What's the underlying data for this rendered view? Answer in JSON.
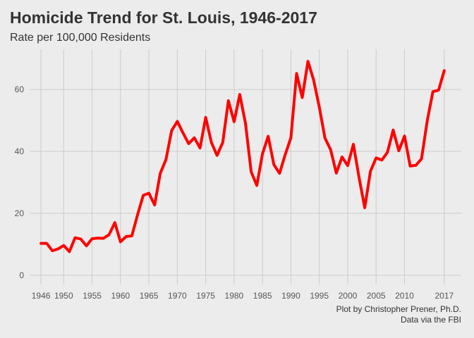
{
  "chart_data": {
    "type": "line",
    "title": "Homicide Trend for St. Louis, 1946-2017",
    "subtitle": "Rate per 100,000 Residents",
    "xlabel": "",
    "ylabel": "",
    "xlim": [
      1944,
      2020
    ],
    "ylim": [
      -3,
      73
    ],
    "x_ticks": [
      1946,
      1950,
      1955,
      1960,
      1965,
      1970,
      1975,
      1980,
      1985,
      1990,
      1995,
      2000,
      2005,
      2010,
      2017
    ],
    "y_ticks": [
      0,
      20,
      40,
      60
    ],
    "grid": true,
    "line_color": "#ff0000",
    "series": [
      {
        "x": [
          1946,
          1947,
          1948,
          1949,
          1950,
          1951,
          1952,
          1953,
          1954,
          1955,
          1956,
          1957,
          1958,
          1959,
          1960,
          1961,
          1962,
          1963,
          1964,
          1965,
          1966,
          1967,
          1968,
          1969,
          1970,
          1971,
          1972,
          1973,
          1974,
          1975,
          1976,
          1977,
          1978,
          1979,
          1980,
          1981,
          1982,
          1983,
          1984,
          1985,
          1986,
          1987,
          1988,
          1989,
          1990,
          1991,
          1992,
          1993,
          1994,
          1995,
          1996,
          1997,
          1998,
          1999,
          2000,
          2001,
          2002,
          2003,
          2004,
          2005,
          2006,
          2007,
          2008,
          2009,
          2010,
          2011,
          2012,
          2013,
          2014,
          2015,
          2016,
          2017
        ],
        "values": [
          10.3,
          10.3,
          7.9,
          8.5,
          9.6,
          7.6,
          12.1,
          11.7,
          9.5,
          11.8,
          12.0,
          11.9,
          13.1,
          17.0,
          10.8,
          12.5,
          12.7,
          19.5,
          25.8,
          26.5,
          22.7,
          32.9,
          37.4,
          46.7,
          49.7,
          46.0,
          42.5,
          44.4,
          41.1,
          51.0,
          42.9,
          38.7,
          42.9,
          56.4,
          49.6,
          58.4,
          49.1,
          33.4,
          29.0,
          39.3,
          44.9,
          35.7,
          32.9,
          39.0,
          44.4,
          65.2,
          57.4,
          69.1,
          63.1,
          54.3,
          44.3,
          40.5,
          33.0,
          38.2,
          35.4,
          42.3,
          31.5,
          21.8,
          33.6,
          37.9,
          37.2,
          39.7,
          46.9,
          40.2,
          45.0,
          35.3,
          35.5,
          37.6,
          49.9,
          59.3,
          59.8,
          66.1
        ]
      }
    ]
  },
  "caption": {
    "line1": "Plot by Christopher Prener, Ph.D.",
    "line2": "Data via the FBI"
  }
}
